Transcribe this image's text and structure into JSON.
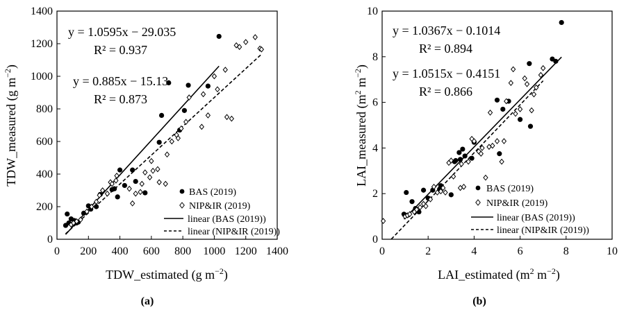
{
  "chart_data": [
    {
      "type": "scatter",
      "panel_label": "a",
      "xlabel_main": "TDW_estimated (g m",
      "xlabel_sup": "−2",
      "xlabel_end": ")",
      "ylabel_main": "TDW_measured (g m",
      "ylabel_sup": "−2",
      "ylabel_end": ")",
      "xlim": [
        0,
        1400
      ],
      "ylim": [
        0,
        1400
      ],
      "xticks": [
        "0",
        "200",
        "400",
        "600",
        "800",
        "1000",
        "1200",
        "1400"
      ],
      "yticks": [
        "0",
        "200",
        "400",
        "600",
        "800",
        "1000",
        "1200",
        "1400"
      ],
      "equations": [
        {
          "text": "y = 1.0595x − 29.035",
          "r2": "R² = 0.937"
        },
        {
          "text": "y = 0.885x − 15.13",
          "r2": "R² = 0.873"
        }
      ],
      "legend": [
        "BAS (2019)",
        "NIP&IR (2019)",
        "linear (BAS (2019))",
        "linear (NIP&IR (2019))"
      ],
      "series": [
        {
          "name": "BAS (2019)",
          "marker": "filled-circle",
          "x": [
            55,
            65,
            75,
            90,
            110,
            125,
            135,
            170,
            200,
            215,
            250,
            275,
            350,
            365,
            385,
            400,
            430,
            480,
            500,
            560,
            650,
            665,
            710,
            780,
            810,
            835,
            960,
            1030
          ],
          "y": [
            85,
            155,
            100,
            125,
            115,
            100,
            105,
            160,
            205,
            185,
            200,
            275,
            305,
            310,
            260,
            425,
            330,
            425,
            355,
            285,
            595,
            760,
            960,
            670,
            790,
            945,
            940,
            1245
          ]
        },
        {
          "name": "NIP&IR (2019)",
          "marker": "open-diamond",
          "x": [
            90,
            105,
            125,
            150,
            190,
            220,
            250,
            270,
            290,
            320,
            340,
            350,
            375,
            380,
            460,
            480,
            500,
            530,
            540,
            560,
            590,
            600,
            610,
            640,
            650,
            690,
            700,
            730,
            760,
            770,
            790,
            820,
            840,
            920,
            930,
            960,
            1000,
            1020,
            1070,
            1080,
            1110,
            1140,
            1160,
            1200,
            1260,
            1290,
            1300
          ],
          "y": [
            90,
            100,
            110,
            120,
            170,
            200,
            230,
            270,
            300,
            280,
            350,
            340,
            360,
            390,
            310,
            220,
            280,
            290,
            340,
            410,
            380,
            480,
            420,
            430,
            350,
            340,
            520,
            600,
            640,
            620,
            680,
            720,
            870,
            690,
            890,
            760,
            1000,
            920,
            1040,
            750,
            740,
            1190,
            1180,
            1210,
            1240,
            1170,
            1165
          ]
        }
      ],
      "fits": [
        {
          "name": "linear (BAS (2019))",
          "slope": 1.0595,
          "intercept": -29.035,
          "x_range": [
            55,
            1030
          ],
          "style": "solid"
        },
        {
          "name": "linear (NIP&IR (2019))",
          "slope": 0.885,
          "intercept": -15.13,
          "x_range": [
            55,
            1300
          ],
          "style": "dashed"
        }
      ]
    },
    {
      "type": "scatter",
      "panel_label": "b",
      "xlabel_main": "LAI_estimated (m",
      "xlabel_sup1": "2",
      "xlabel_mid": " m",
      "xlabel_sup2": "−2",
      "xlabel_end": ")",
      "ylabel_main": "LAI_measured (m",
      "ylabel_sup1": "2",
      "ylabel_mid": " m",
      "ylabel_sup2": "−2",
      "ylabel_end": ")",
      "xlim": [
        0,
        10
      ],
      "ylim": [
        0,
        10
      ],
      "xticks": [
        "0",
        "2",
        "4",
        "6",
        "8",
        "10"
      ],
      "yticks": [
        "0",
        "2",
        "4",
        "6",
        "8",
        "10"
      ],
      "equations": [
        {
          "text": "y = 1.0367x − 0.1014",
          "r2": "R² = 0.894"
        },
        {
          "text": "y = 1.0515x − 0.4151",
          "r2": "R² = 0.866"
        }
      ],
      "legend": [
        "BAS (2019)",
        "NIP&IR (2019)",
        "linear (BAS (2019))",
        "linear (NIP&IR (2019))"
      ],
      "series": [
        {
          "name": "BAS (2019)",
          "marker": "filled-circle",
          "x": [
            0.95,
            1.05,
            1.1,
            1.3,
            1.45,
            1.6,
            1.8,
            2.0,
            2.2,
            2.5,
            2.55,
            3.0,
            3.15,
            3.2,
            3.35,
            3.4,
            3.5,
            3.6,
            3.9,
            4.0,
            5.0,
            5.1,
            5.25,
            5.5,
            6.0,
            6.4,
            6.45,
            7.4,
            7.55,
            7.8
          ],
          "y": [
            1.1,
            2.05,
            1.05,
            1.65,
            1.35,
            1.2,
            2.15,
            1.8,
            2.15,
            2.2,
            2.35,
            1.95,
            3.4,
            3.45,
            3.8,
            3.5,
            3.95,
            3.65,
            3.55,
            4.25,
            6.1,
            3.75,
            5.7,
            6.05,
            5.25,
            7.7,
            4.95,
            7.9,
            7.8,
            9.5
          ]
        },
        {
          "name": "NIP&IR (2019)",
          "marker": "open-diamond",
          "x": [
            0.05,
            1.0,
            1.1,
            1.2,
            1.4,
            1.5,
            1.65,
            1.8,
            1.9,
            2.1,
            2.25,
            2.4,
            2.55,
            2.65,
            2.75,
            2.9,
            3.0,
            3.1,
            3.4,
            3.45,
            3.55,
            3.75,
            3.9,
            4.0,
            4.2,
            4.3,
            4.35,
            4.5,
            4.65,
            4.7,
            4.8,
            5.0,
            5.2,
            5.3,
            5.4,
            5.6,
            5.7,
            5.8,
            6.0,
            6.2,
            6.3,
            6.5,
            6.6,
            6.7,
            6.9,
            7.0
          ],
          "y": [
            0.8,
            1.0,
            1.05,
            1.1,
            1.2,
            1.3,
            1.4,
            1.55,
            1.45,
            1.75,
            2.3,
            2.05,
            2.1,
            2.25,
            2.05,
            3.35,
            3.45,
            2.75,
            2.25,
            3.3,
            2.3,
            3.4,
            4.4,
            4.3,
            3.85,
            3.75,
            4.0,
            2.7,
            4.05,
            5.55,
            4.1,
            4.3,
            3.4,
            4.3,
            6.05,
            6.85,
            7.45,
            5.5,
            5.7,
            7.05,
            6.8,
            5.65,
            6.35,
            6.65,
            7.2,
            7.5
          ]
        }
      ],
      "fits": [
        {
          "name": "linear (BAS (2019))",
          "slope": 1.0367,
          "intercept": -0.1014,
          "x_range": [
            0.95,
            7.8
          ],
          "style": "solid"
        },
        {
          "name": "linear (NIP&IR (2019))",
          "slope": 1.0515,
          "intercept": -0.4151,
          "x_range": [
            0.4,
            7.0
          ],
          "style": "dashed"
        }
      ]
    }
  ]
}
